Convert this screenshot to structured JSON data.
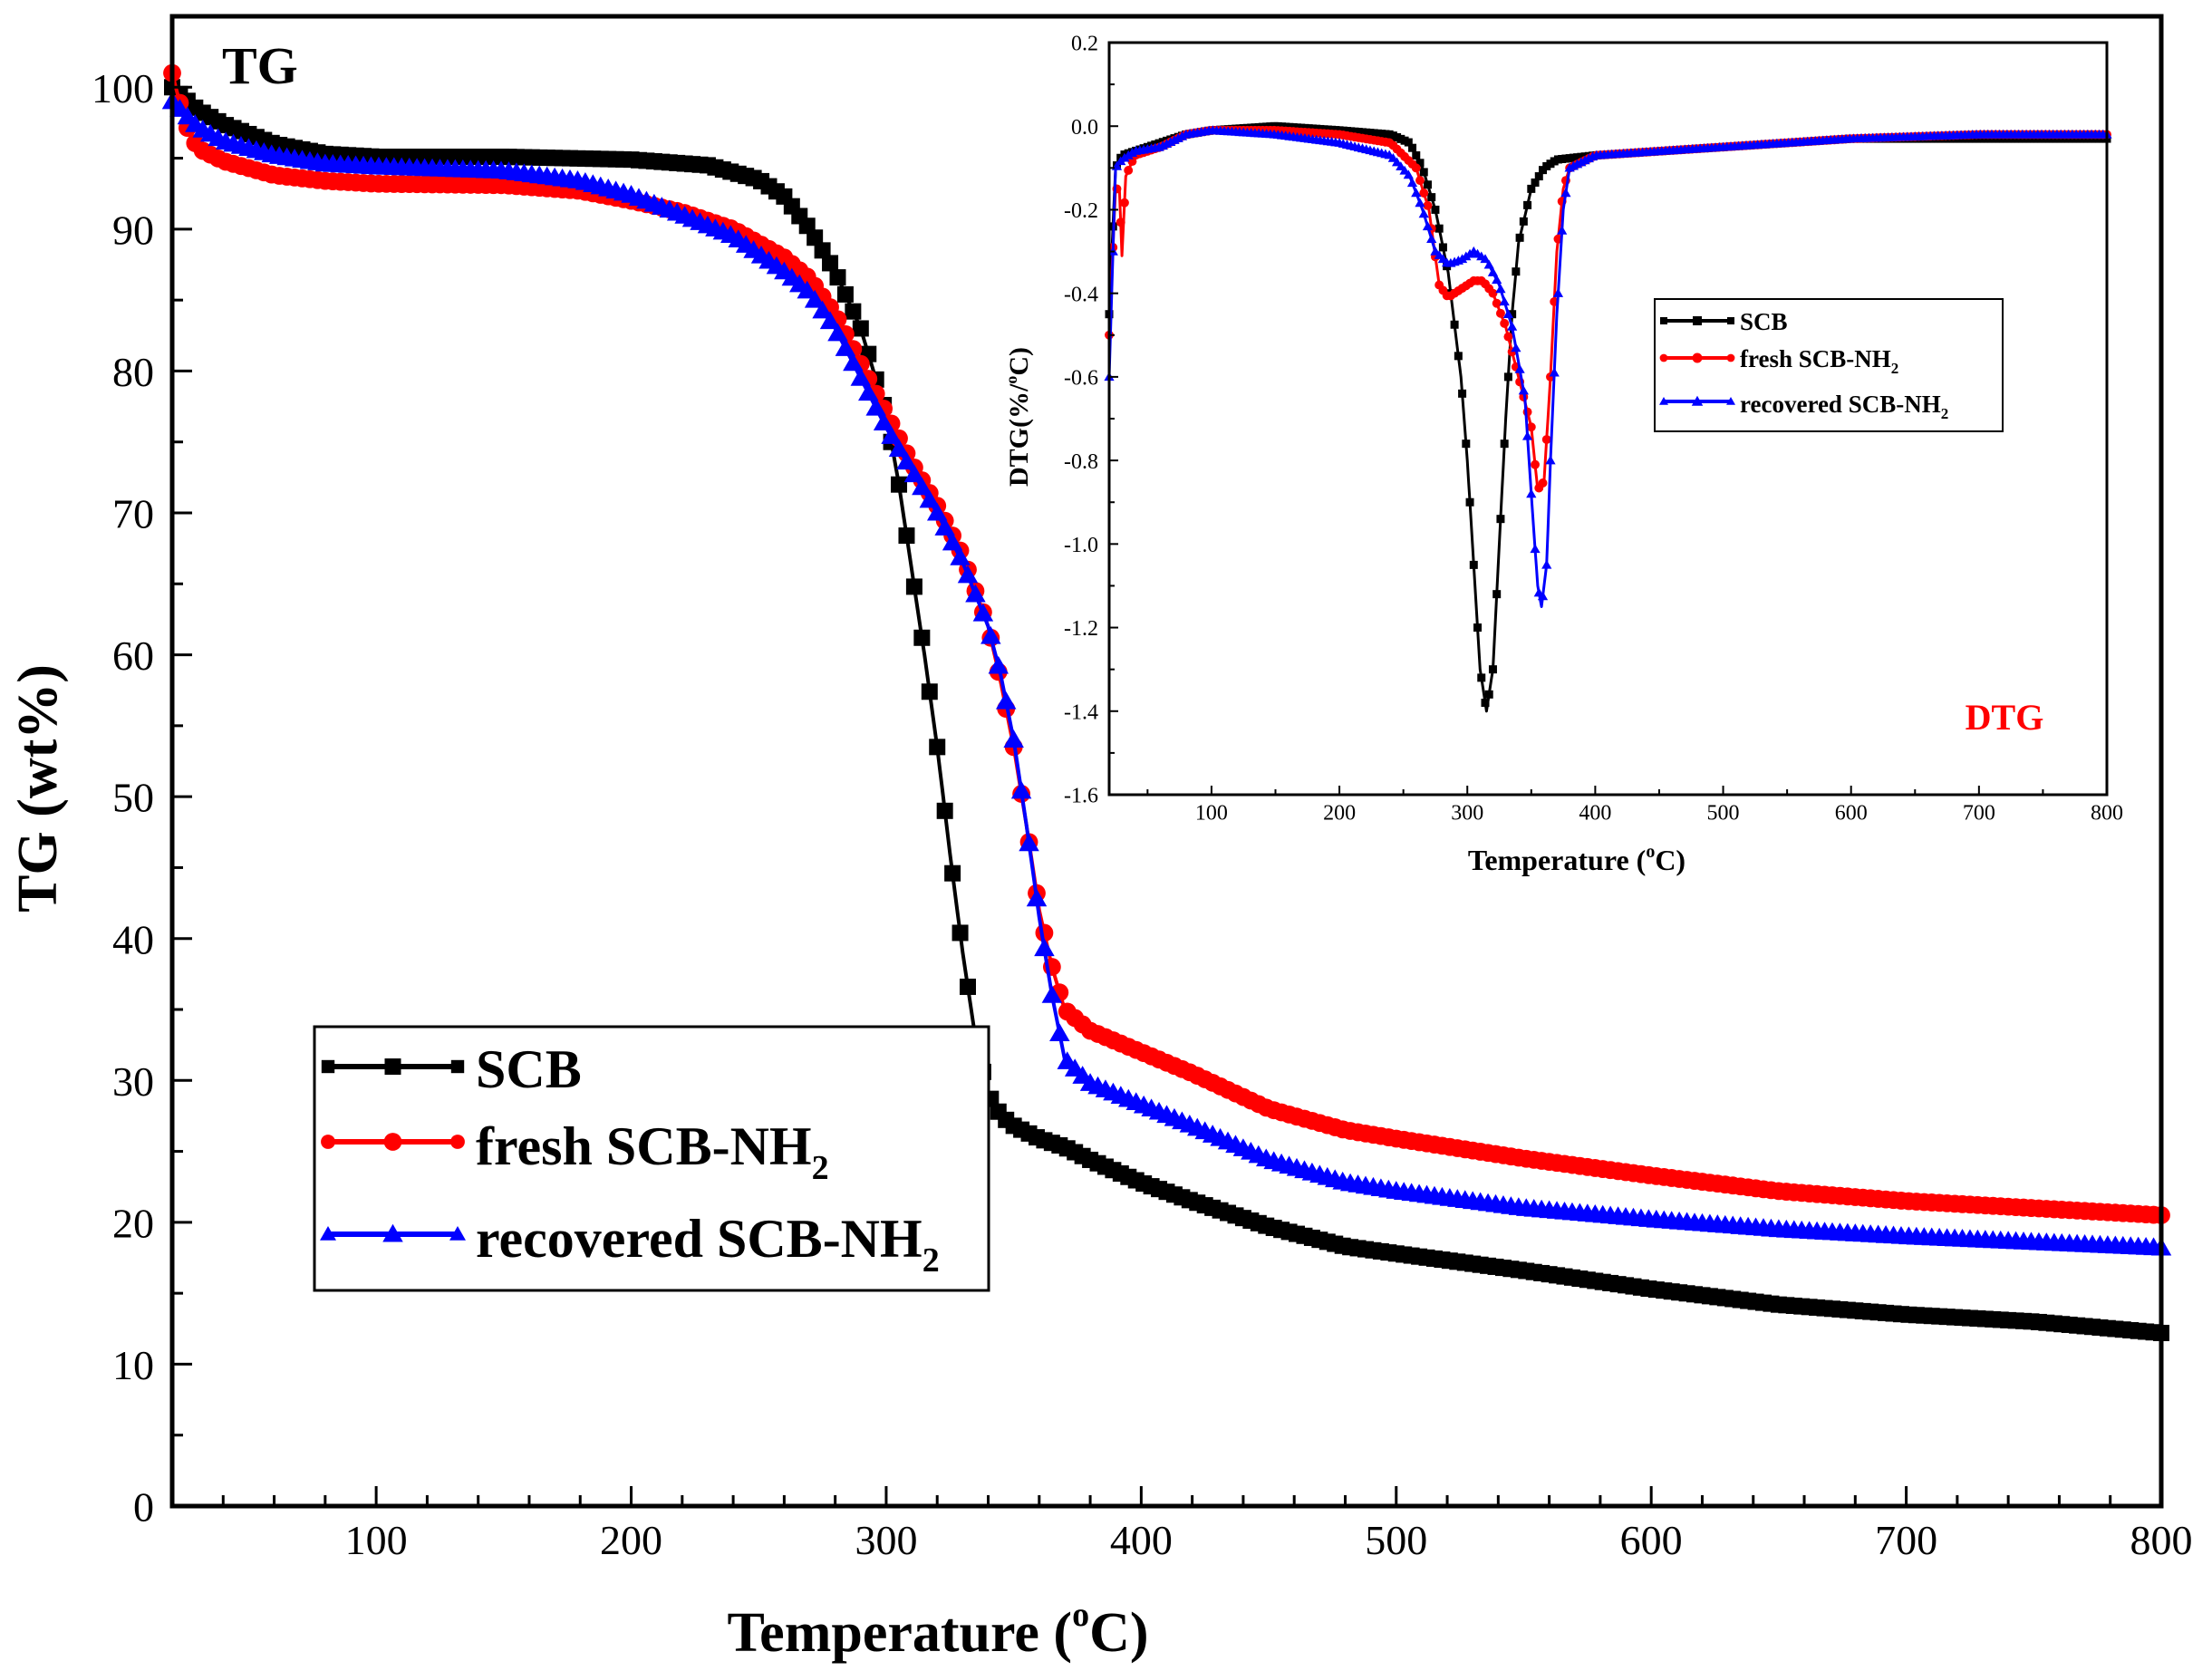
{
  "chart_data": [
    {
      "id": "tg",
      "type": "line",
      "title": "",
      "panel_label": "TG",
      "xlabel": "Temperature (oC)",
      "xlabel_parts": {
        "main": "Temperature (",
        "sup": "o",
        "tail": "C)"
      },
      "ylabel": "TG (wt%)",
      "xlim": [
        20,
        800
      ],
      "ylim": [
        0,
        105
      ],
      "xticks": [
        100,
        200,
        300,
        400,
        500,
        600,
        700,
        800
      ],
      "yticks": [
        0,
        10,
        20,
        30,
        40,
        50,
        60,
        70,
        80,
        90,
        100
      ],
      "legend": [
        {
          "name": "SCB",
          "base": "SCB",
          "sub": "",
          "color": "#000000",
          "marker": "square"
        },
        {
          "name": "fresh SCB-NH2",
          "base": "fresh SCB-NH",
          "sub": "2",
          "color": "#ff0000",
          "marker": "circle"
        },
        {
          "name": "recovered SCB-NH2",
          "base": "recovered SCB-NH",
          "sub": "2",
          "color": "#0000ff",
          "marker": "triangle"
        }
      ],
      "series": [
        {
          "name": "SCB",
          "color": "#000000",
          "marker": "square",
          "points": [
            [
              20,
              100
            ],
            [
              30,
              98.4
            ],
            [
              40,
              97.4
            ],
            [
              60,
              96
            ],
            [
              80,
              95.3
            ],
            [
              100,
              95.1
            ],
            [
              150,
              95.1
            ],
            [
              200,
              94.9
            ],
            [
              230,
              94.5
            ],
            [
              250,
              93.5
            ],
            [
              260,
              92.3
            ],
            [
              270,
              90
            ],
            [
              280,
              87
            ],
            [
              290,
              83
            ],
            [
              300,
              77
            ],
            [
              305,
              72
            ],
            [
              310,
              66
            ],
            [
              315,
              60
            ],
            [
              320,
              53.5
            ],
            [
              325,
              46
            ],
            [
              330,
              39
            ],
            [
              335,
              33
            ],
            [
              340,
              29
            ],
            [
              345,
              27.5
            ],
            [
              350,
              26.8
            ],
            [
              360,
              25.9
            ],
            [
              370,
              25.3
            ],
            [
              380,
              24.4
            ],
            [
              400,
              22.8
            ],
            [
              420,
              21.5
            ],
            [
              450,
              19.7
            ],
            [
              480,
              18.3
            ],
            [
              500,
              17.8
            ],
            [
              550,
              16.6
            ],
            [
              600,
              15.3
            ],
            [
              650,
              14.2
            ],
            [
              700,
              13.5
            ],
            [
              750,
              13
            ],
            [
              800,
              12.2
            ]
          ]
        },
        {
          "name": "fresh SCB-NH2",
          "color": "#ff0000",
          "marker": "circle",
          "points": [
            [
              20,
              101
            ],
            [
              25,
              97.5
            ],
            [
              30,
              95.7
            ],
            [
              40,
              94.8
            ],
            [
              60,
              93.8
            ],
            [
              80,
              93.4
            ],
            [
              100,
              93.2
            ],
            [
              150,
              93.1
            ],
            [
              180,
              92.7
            ],
            [
              200,
              92
            ],
            [
              220,
              91.2
            ],
            [
              240,
              90
            ],
            [
              260,
              88
            ],
            [
              270,
              86.5
            ],
            [
              280,
              84
            ],
            [
              290,
              80.5
            ],
            [
              300,
              77
            ],
            [
              310,
              73.5
            ],
            [
              320,
              70.5
            ],
            [
              330,
              67
            ],
            [
              340,
              62
            ],
            [
              345,
              58
            ],
            [
              350,
              53.5
            ],
            [
              355,
              48
            ],
            [
              360,
              42
            ],
            [
              365,
              38
            ],
            [
              370,
              35
            ],
            [
              380,
              33.5
            ],
            [
              400,
              32
            ],
            [
              420,
              30.5
            ],
            [
              450,
              28
            ],
            [
              480,
              26.5
            ],
            [
              500,
              25.9
            ],
            [
              550,
              24.5
            ],
            [
              600,
              23.3
            ],
            [
              650,
              22.2
            ],
            [
              700,
              21.5
            ],
            [
              750,
              21
            ],
            [
              800,
              20.5
            ]
          ]
        },
        {
          "name": "recovered SCB-NH2",
          "color": "#0000ff",
          "marker": "triangle",
          "points": [
            [
              20,
              99
            ],
            [
              30,
              97.2
            ],
            [
              40,
              96.2
            ],
            [
              60,
              95.2
            ],
            [
              80,
              94.6
            ],
            [
              100,
              94.4
            ],
            [
              150,
              94.1
            ],
            [
              180,
              93.4
            ],
            [
              200,
              92.4
            ],
            [
              220,
              91
            ],
            [
              240,
              89.5
            ],
            [
              260,
              87
            ],
            [
              270,
              85.5
            ],
            [
              280,
              83
            ],
            [
              290,
              79.5
            ],
            [
              300,
              76
            ],
            [
              310,
              73
            ],
            [
              320,
              70
            ],
            [
              330,
              66.5
            ],
            [
              340,
              62
            ],
            [
              345,
              58.5
            ],
            [
              350,
              54
            ],
            [
              355,
              48
            ],
            [
              360,
              41.5
            ],
            [
              365,
              36
            ],
            [
              370,
              31.5
            ],
            [
              380,
              29.8
            ],
            [
              400,
              28.3
            ],
            [
              420,
              26.8
            ],
            [
              450,
              24.4
            ],
            [
              480,
              22.8
            ],
            [
              500,
              22.2
            ],
            [
              550,
              21
            ],
            [
              600,
              20.2
            ],
            [
              650,
              19.5
            ],
            [
              700,
              19
            ],
            [
              750,
              18.6
            ],
            [
              800,
              18.2
            ]
          ]
        }
      ]
    },
    {
      "id": "dtg",
      "type": "line",
      "title": "",
      "panel_label": "DTG",
      "xlabel": "Temperature (oC)",
      "xlabel_parts": {
        "main": "Temperature (",
        "sup": "o",
        "tail": "C)"
      },
      "ylabel": "DTG(%/oC)",
      "ylabel_parts": {
        "main": "DTG(%/",
        "sup": "o",
        "tail": "C)"
      },
      "xlim": [
        20,
        800
      ],
      "ylim": [
        -1.6,
        0.2
      ],
      "xticks": [
        100,
        200,
        300,
        400,
        500,
        600,
        700,
        800
      ],
      "yticks": [
        0.2,
        0.0,
        -0.2,
        -0.4,
        -0.6,
        -0.8,
        -1.0,
        -1.2,
        -1.4,
        -1.6
      ],
      "ytick_labels": [
        "0.2",
        "0.0",
        "-0.2",
        "-0.4",
        "-0.6",
        "-0.8",
        "-1.0",
        "-1.2",
        "-1.4",
        "-1.6"
      ],
      "legend": [
        {
          "name": "SCB",
          "base": "SCB",
          "sub": "",
          "color": "#000000",
          "marker": "square"
        },
        {
          "name": "fresh SCB-NH2",
          "base": "fresh SCB-NH",
          "sub": "2",
          "color": "#ff0000",
          "marker": "circle"
        },
        {
          "name": "recovered SCB-NH2",
          "base": "recovered SCB-NH",
          "sub": "2",
          "color": "#0000ff",
          "marker": "triangle"
        }
      ],
      "series": [
        {
          "name": "SCB",
          "color": "#000000",
          "marker": "square",
          "points": [
            [
              20,
              -0.45
            ],
            [
              25,
              -0.1
            ],
            [
              30,
              -0.07
            ],
            [
              40,
              -0.06
            ],
            [
              60,
              -0.04
            ],
            [
              80,
              -0.02
            ],
            [
              100,
              -0.01
            ],
            [
              150,
              0
            ],
            [
              200,
              -0.01
            ],
            [
              240,
              -0.02
            ],
            [
              255,
              -0.04
            ],
            [
              265,
              -0.1
            ],
            [
              275,
              -0.2
            ],
            [
              285,
              -0.35
            ],
            [
              295,
              -0.6
            ],
            [
              300,
              -0.8
            ],
            [
              305,
              -1.05
            ],
            [
              310,
              -1.3
            ],
            [
              315,
              -1.4
            ],
            [
              320,
              -1.3
            ],
            [
              325,
              -1.0
            ],
            [
              330,
              -0.7
            ],
            [
              335,
              -0.45
            ],
            [
              340,
              -0.28
            ],
            [
              350,
              -0.15
            ],
            [
              360,
              -0.1
            ],
            [
              370,
              -0.08
            ],
            [
              400,
              -0.07
            ],
            [
              450,
              -0.06
            ],
            [
              500,
              -0.05
            ],
            [
              600,
              -0.03
            ],
            [
              700,
              -0.03
            ],
            [
              800,
              -0.03
            ]
          ]
        },
        {
          "name": "fresh SCB-NH2",
          "color": "#ff0000",
          "marker": "circle",
          "points": [
            [
              20,
              -0.5
            ],
            [
              25,
              -0.15
            ],
            [
              28,
              -0.15
            ],
            [
              30,
              -0.31
            ],
            [
              33,
              -0.12
            ],
            [
              40,
              -0.07
            ],
            [
              60,
              -0.05
            ],
            [
              80,
              -0.02
            ],
            [
              100,
              -0.01
            ],
            [
              150,
              -0.01
            ],
            [
              200,
              -0.02
            ],
            [
              240,
              -0.04
            ],
            [
              260,
              -0.1
            ],
            [
              270,
              -0.2
            ],
            [
              278,
              -0.38
            ],
            [
              285,
              -0.41
            ],
            [
              295,
              -0.39
            ],
            [
              305,
              -0.37
            ],
            [
              312,
              -0.37
            ],
            [
              320,
              -0.4
            ],
            [
              330,
              -0.48
            ],
            [
              340,
              -0.6
            ],
            [
              350,
              -0.72
            ],
            [
              355,
              -0.87
            ],
            [
              360,
              -0.85
            ],
            [
              365,
              -0.6
            ],
            [
              370,
              -0.3
            ],
            [
              375,
              -0.15
            ],
            [
              380,
              -0.1
            ],
            [
              400,
              -0.07
            ],
            [
              450,
              -0.06
            ],
            [
              500,
              -0.05
            ],
            [
              600,
              -0.03
            ],
            [
              700,
              -0.02
            ],
            [
              800,
              -0.02
            ]
          ]
        },
        {
          "name": "recovered SCB-NH2",
          "color": "#0000ff",
          "marker": "triangle",
          "points": [
            [
              20,
              -0.6
            ],
            [
              25,
              -0.1
            ],
            [
              30,
              -0.08
            ],
            [
              40,
              -0.06
            ],
            [
              60,
              -0.05
            ],
            [
              80,
              -0.02
            ],
            [
              100,
              -0.01
            ],
            [
              150,
              -0.02
            ],
            [
              200,
              -0.04
            ],
            [
              240,
              -0.07
            ],
            [
              255,
              -0.12
            ],
            [
              265,
              -0.2
            ],
            [
              275,
              -0.3
            ],
            [
              285,
              -0.33
            ],
            [
              295,
              -0.32
            ],
            [
              305,
              -0.3
            ],
            [
              315,
              -0.32
            ],
            [
              325,
              -0.38
            ],
            [
              335,
              -0.48
            ],
            [
              345,
              -0.65
            ],
            [
              350,
              -0.88
            ],
            [
              355,
              -1.1
            ],
            [
              358,
              -1.15
            ],
            [
              362,
              -1.05
            ],
            [
              365,
              -0.8
            ],
            [
              370,
              -0.45
            ],
            [
              375,
              -0.2
            ],
            [
              380,
              -0.1
            ],
            [
              400,
              -0.07
            ],
            [
              450,
              -0.06
            ],
            [
              500,
              -0.05
            ],
            [
              600,
              -0.03
            ],
            [
              700,
              -0.02
            ],
            [
              800,
              -0.02
            ]
          ]
        }
      ]
    }
  ]
}
